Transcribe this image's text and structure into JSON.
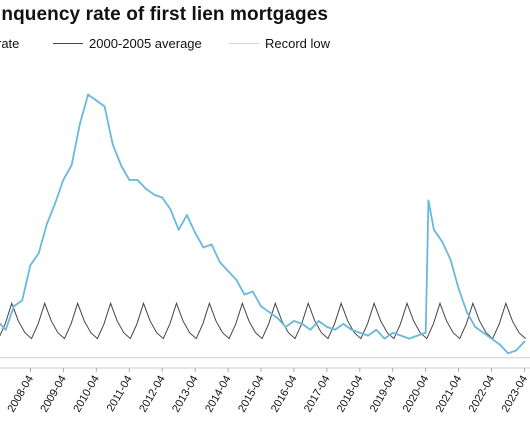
{
  "chart_data": {
    "type": "line",
    "title": "inquency rate of first lien mortgages",
    "xlabel": "",
    "ylabel": "",
    "grid": false,
    "legend_placement": "top",
    "x_tick_labels": [
      "2008-04",
      "2009-04",
      "2010-04",
      "2011-04",
      "2012-04",
      "2013-04",
      "2014-04",
      "2015-04",
      "2016-04",
      "2017-04",
      "2018-04",
      "2019-04",
      "2020-04",
      "2021-04",
      "2022-04",
      "2023-04"
    ],
    "x_range": [
      "2007-02",
      "2023-06"
    ],
    "ylim": [
      0,
      10
    ],
    "series": [
      {
        "name": "rate",
        "color": "#6ab8dc",
        "x": [
          "2007-04",
          "2007-07",
          "2007-10",
          "2008-01",
          "2008-04",
          "2008-07",
          "2008-10",
          "2009-01",
          "2009-04",
          "2009-07",
          "2009-10",
          "2010-01",
          "2010-04",
          "2010-07",
          "2010-10",
          "2011-01",
          "2011-04",
          "2011-07",
          "2011-10",
          "2012-01",
          "2012-04",
          "2012-07",
          "2012-10",
          "2013-01",
          "2013-04",
          "2013-07",
          "2013-10",
          "2014-01",
          "2014-04",
          "2014-07",
          "2014-10",
          "2015-01",
          "2015-04",
          "2015-07",
          "2015-10",
          "2016-01",
          "2016-04",
          "2016-07",
          "2016-10",
          "2017-01",
          "2017-04",
          "2017-07",
          "2017-10",
          "2018-01",
          "2018-04",
          "2018-07",
          "2018-10",
          "2019-01",
          "2019-04",
          "2019-07",
          "2019-10",
          "2020-01",
          "2020-04",
          "2020-05",
          "2020-07",
          "2020-10",
          "2021-01",
          "2021-04",
          "2021-07",
          "2021-10",
          "2022-01",
          "2022-04",
          "2022-07",
          "2022-10",
          "2023-01",
          "2023-04"
        ],
        "values": [
          1.6,
          1.3,
          2.1,
          2.3,
          3.5,
          3.9,
          4.9,
          5.6,
          6.4,
          6.9,
          8.3,
          9.3,
          9.1,
          8.9,
          7.6,
          6.9,
          6.4,
          6.4,
          6.1,
          5.9,
          5.8,
          5.4,
          4.7,
          5.2,
          4.6,
          4.1,
          4.2,
          3.6,
          3.3,
          3.0,
          2.5,
          2.6,
          2.1,
          1.9,
          1.7,
          1.4,
          1.6,
          1.5,
          1.3,
          1.6,
          1.4,
          1.3,
          1.5,
          1.3,
          1.2,
          1.1,
          1.3,
          1.0,
          1.2,
          1.1,
          1.0,
          1.1,
          1.2,
          5.7,
          4.7,
          4.3,
          3.7,
          2.7,
          1.9,
          1.4,
          1.2,
          1.0,
          0.8,
          0.5,
          0.6,
          0.9
        ]
      },
      {
        "name": "2000-2005 average",
        "color": "#444444",
        "seasonal_pattern": [
          1.2,
          1.0,
          1.5,
          2.2,
          1.6
        ],
        "mean": 1.5
      },
      {
        "name": "Record low",
        "color": "#cfcfcf",
        "value": 0.35
      }
    ]
  }
}
